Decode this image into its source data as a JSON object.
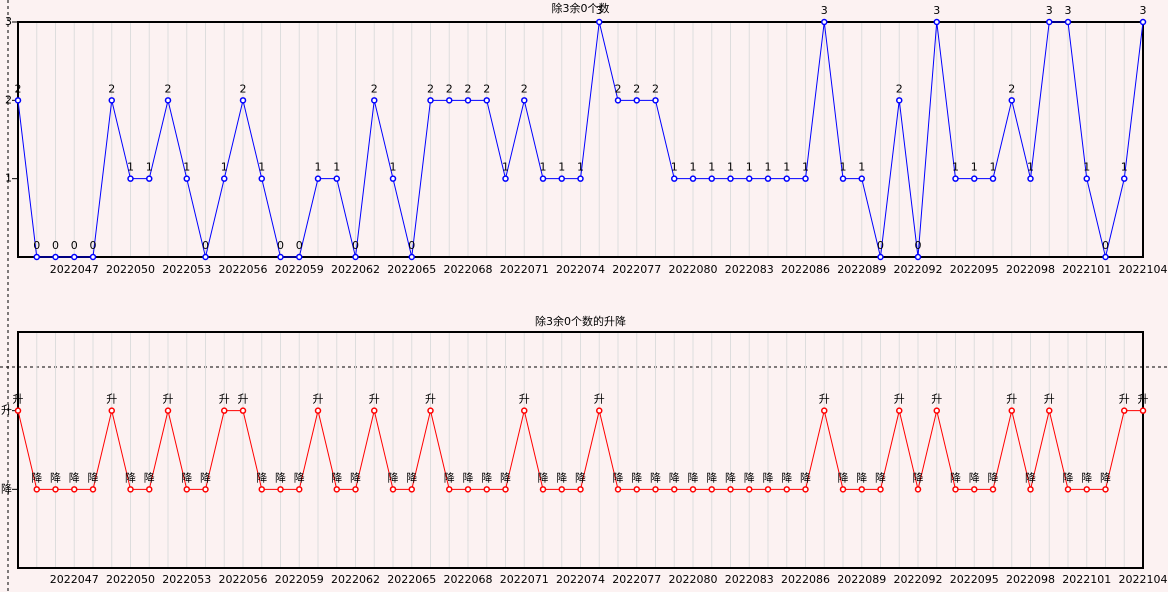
{
  "chart_data": [
    {
      "type": "line",
      "title": "除3余0个数",
      "categories": [
        null,
        null,
        null,
        "2022047",
        null,
        null,
        "2022050",
        null,
        null,
        "2022053",
        null,
        null,
        "2022056",
        null,
        null,
        "2022059",
        null,
        null,
        "2022062",
        null,
        null,
        "2022065",
        null,
        null,
        "2022068",
        null,
        null,
        "2022071",
        null,
        null,
        "2022074",
        null,
        null,
        "2022077",
        null,
        null,
        "2022080",
        null,
        null,
        "2022083",
        null,
        null,
        "2022086",
        null,
        null,
        "2022089",
        null,
        null,
        "2022092",
        null,
        null,
        "2022095",
        null,
        null,
        "2022098",
        null,
        null,
        "2022101",
        null,
        null,
        "2022104"
      ],
      "series": [
        {
          "color": "#0000ff",
          "values": [
            2,
            0,
            0,
            0,
            0,
            2,
            1,
            1,
            2,
            1,
            0,
            1,
            2,
            1,
            0,
            0,
            1,
            1,
            0,
            2,
            1,
            0,
            2,
            2,
            2,
            2,
            1,
            2,
            1,
            1,
            1,
            3,
            2,
            2,
            2,
            1,
            1,
            1,
            1,
            1,
            1,
            1,
            1,
            3,
            1,
            1,
            0,
            2,
            0,
            3,
            1,
            1,
            1,
            2,
            1,
            3,
            3,
            1,
            0,
            1,
            3
          ]
        }
      ],
      "ylim": [
        0,
        3
      ],
      "yticks": [
        1,
        2,
        3
      ],
      "grid": true
    },
    {
      "type": "line",
      "title": "除3余0个数的升降",
      "categories": [
        null,
        null,
        null,
        "2022047",
        null,
        null,
        "2022050",
        null,
        null,
        "2022053",
        null,
        null,
        "2022056",
        null,
        null,
        "2022059",
        null,
        null,
        "2022062",
        null,
        null,
        "2022065",
        null,
        null,
        "2022068",
        null,
        null,
        "2022071",
        null,
        null,
        "2022074",
        null,
        null,
        "2022077",
        null,
        null,
        "2022080",
        null,
        null,
        "2022083",
        null,
        null,
        "2022086",
        null,
        null,
        "2022089",
        null,
        null,
        "2022092",
        null,
        null,
        "2022095",
        null,
        null,
        "2022098",
        null,
        null,
        "2022101",
        null,
        null,
        "2022104"
      ],
      "series": [
        {
          "color": "#ff0000",
          "values": [
            2,
            1,
            1,
            1,
            1,
            2,
            1,
            1,
            2,
            1,
            1,
            2,
            2,
            1,
            1,
            1,
            2,
            1,
            1,
            2,
            1,
            1,
            2,
            1,
            1,
            1,
            1,
            2,
            1,
            1,
            1,
            2,
            1,
            1,
            1,
            1,
            1,
            1,
            1,
            1,
            1,
            1,
            1,
            2,
            1,
            1,
            1,
            2,
            1,
            2,
            1,
            1,
            1,
            2,
            1,
            2,
            1,
            1,
            1,
            2,
            2
          ],
          "value_labels": [
            "升",
            "降",
            "降",
            "降",
            "降",
            "升",
            "降",
            "降",
            "升",
            "降",
            "降",
            "升",
            "升",
            "降",
            "降",
            "降",
            "升",
            "降",
            "降",
            "升",
            "降",
            "降",
            "升",
            "降",
            "降",
            "降",
            "降",
            "升",
            "降",
            "降",
            "降",
            "升",
            "降",
            "降",
            "降",
            "降",
            "降",
            "降",
            "降",
            "降",
            "降",
            "降",
            "降",
            "升",
            "降",
            "降",
            "降",
            "升",
            "降",
            "升",
            "降",
            "降",
            "降",
            "升",
            "降",
            "升",
            "降",
            "降",
            "降",
            "升",
            "升"
          ]
        }
      ],
      "ylim": [
        0,
        3
      ],
      "yticks": [
        {
          "value": 1,
          "label": "降"
        },
        {
          "value": 2,
          "label": "升"
        }
      ],
      "grid": true
    }
  ]
}
